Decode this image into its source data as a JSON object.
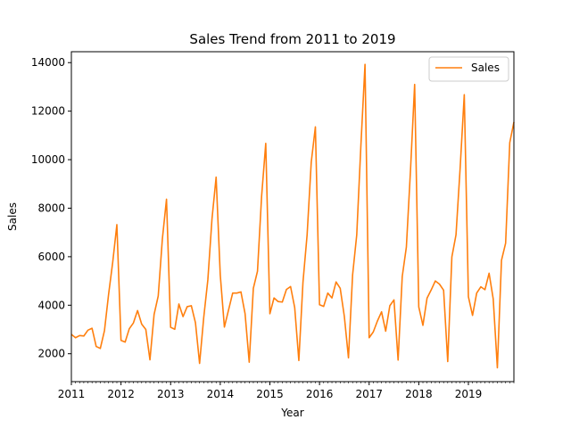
{
  "chart_data": {
    "type": "line",
    "title": "Sales Trend from 2011 to 2019",
    "xlabel": "Year",
    "ylabel": "Sales",
    "xlim": [
      "2011-01",
      "2019-12"
    ],
    "ylim": [
      850,
      14450
    ],
    "x_ticks": [
      "2011",
      "2012",
      "2013",
      "2014",
      "2015",
      "2016",
      "2017",
      "2018",
      "2019"
    ],
    "y_ticks": [
      2000,
      4000,
      6000,
      8000,
      10000,
      12000,
      14000
    ],
    "legend": {
      "position": "top-right"
    },
    "series": [
      {
        "name": "Sales",
        "color": "#ff7f0e",
        "x_start": "2011-01",
        "frequency": "monthly",
        "values": [
          2800,
          2660,
          2750,
          2730,
          2970,
          3050,
          2300,
          2220,
          2950,
          4450,
          5780,
          7320,
          2550,
          2480,
          3030,
          3270,
          3780,
          3220,
          3000,
          1750,
          3620,
          4380,
          6730,
          8370,
          3090,
          3010,
          4050,
          3530,
          3940,
          3980,
          3280,
          1600,
          3490,
          5050,
          7560,
          9280,
          5250,
          3100,
          3800,
          4500,
          4500,
          4550,
          3650,
          1650,
          4700,
          5400,
          8500,
          10670,
          3650,
          4300,
          4150,
          4130,
          4650,
          4770,
          3900,
          1720,
          4950,
          6900,
          9900,
          11350,
          4020,
          3950,
          4500,
          4300,
          4960,
          4700,
          3540,
          1830,
          5250,
          6900,
          10580,
          13930,
          2660,
          2900,
          3350,
          3730,
          2930,
          3980,
          4220,
          1740,
          5180,
          6400,
          9570,
          13100,
          3930,
          3170,
          4290,
          4630,
          5000,
          4870,
          4620,
          1680,
          5990,
          6900,
          9650,
          12680,
          4350,
          3580,
          4500,
          4760,
          4640,
          5320,
          4260,
          1420,
          5850,
          6560,
          10700,
          11550
        ]
      }
    ]
  }
}
